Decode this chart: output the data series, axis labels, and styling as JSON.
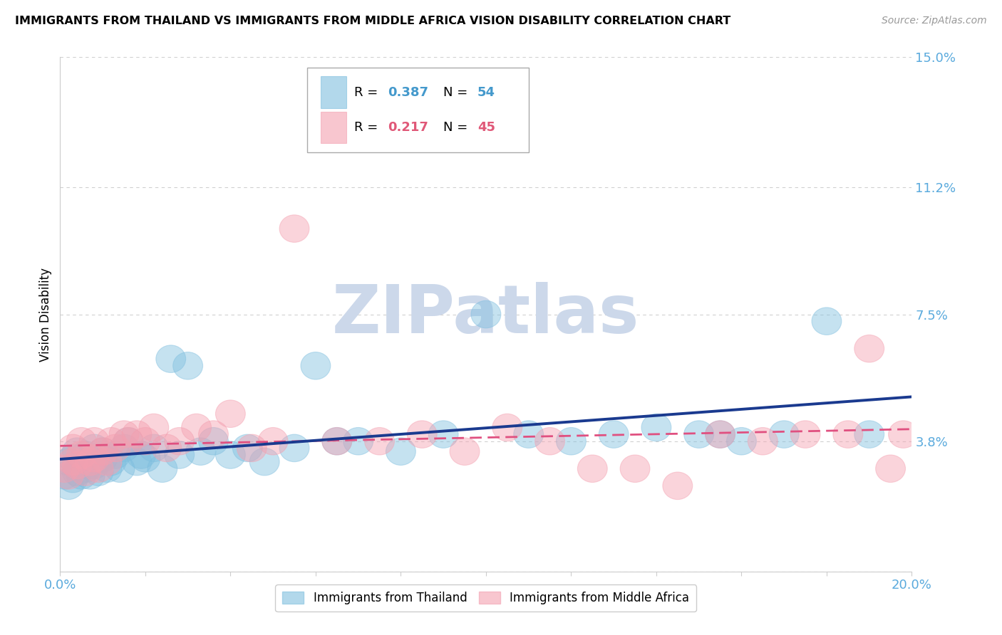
{
  "title": "IMMIGRANTS FROM THAILAND VS IMMIGRANTS FROM MIDDLE AFRICA VISION DISABILITY CORRELATION CHART",
  "source": "Source: ZipAtlas.com",
  "ylabel": "Vision Disability",
  "xlim": [
    0.0,
    0.2
  ],
  "ylim": [
    0.0,
    0.15
  ],
  "ytick_vals": [
    0.0,
    0.038,
    0.075,
    0.112,
    0.15
  ],
  "ytick_labels": [
    "",
    "3.8%",
    "7.5%",
    "11.2%",
    "15.0%"
  ],
  "xtick_vals": [
    0.0,
    0.02,
    0.04,
    0.06,
    0.08,
    0.1,
    0.12,
    0.14,
    0.16,
    0.18,
    0.2
  ],
  "xtick_labels": [
    "0.0%",
    "",
    "",
    "",
    "",
    "",
    "",
    "",
    "",
    "",
    "20.0%"
  ],
  "bg_color": "#ffffff",
  "grid_color": "#d0d0d0",
  "color_thailand": "#7fbfdf",
  "color_africa": "#f4a0b0",
  "color_blue_line": "#1a3a8f",
  "color_pink_line": "#e05080",
  "color_axis_labels": "#5aaadd",
  "legend_R1": "0.387",
  "legend_N1": "54",
  "legend_R2": "0.217",
  "legend_N2": "45",
  "watermark_text": "ZIPatlas",
  "watermark_color": "#ccd8ea",
  "thailand_x": [
    0.001,
    0.002,
    0.002,
    0.003,
    0.003,
    0.004,
    0.004,
    0.005,
    0.005,
    0.006,
    0.006,
    0.007,
    0.007,
    0.008,
    0.008,
    0.009,
    0.01,
    0.01,
    0.011,
    0.012,
    0.013,
    0.014,
    0.015,
    0.016,
    0.018,
    0.019,
    0.02,
    0.022,
    0.024,
    0.026,
    0.028,
    0.03,
    0.033,
    0.036,
    0.04,
    0.044,
    0.048,
    0.055,
    0.06,
    0.065,
    0.07,
    0.08,
    0.09,
    0.1,
    0.11,
    0.12,
    0.13,
    0.14,
    0.15,
    0.155,
    0.16,
    0.17,
    0.18,
    0.19
  ],
  "thailand_y": [
    0.028,
    0.025,
    0.032,
    0.027,
    0.033,
    0.029,
    0.035,
    0.028,
    0.031,
    0.03,
    0.034,
    0.028,
    0.032,
    0.031,
    0.036,
    0.029,
    0.033,
    0.035,
    0.03,
    0.032,
    0.034,
    0.03,
    0.036,
    0.038,
    0.032,
    0.034,
    0.033,
    0.036,
    0.03,
    0.062,
    0.034,
    0.06,
    0.035,
    0.038,
    0.034,
    0.036,
    0.032,
    0.036,
    0.06,
    0.038,
    0.038,
    0.035,
    0.04,
    0.075,
    0.04,
    0.038,
    0.04,
    0.042,
    0.04,
    0.04,
    0.038,
    0.04,
    0.073,
    0.04
  ],
  "africa_x": [
    0.001,
    0.002,
    0.003,
    0.003,
    0.004,
    0.005,
    0.005,
    0.006,
    0.007,
    0.008,
    0.008,
    0.009,
    0.01,
    0.011,
    0.012,
    0.013,
    0.015,
    0.016,
    0.018,
    0.02,
    0.022,
    0.025,
    0.028,
    0.032,
    0.036,
    0.04,
    0.045,
    0.05,
    0.055,
    0.065,
    0.075,
    0.085,
    0.095,
    0.105,
    0.115,
    0.125,
    0.135,
    0.145,
    0.155,
    0.165,
    0.175,
    0.185,
    0.19,
    0.195,
    0.198
  ],
  "africa_y": [
    0.03,
    0.028,
    0.032,
    0.036,
    0.031,
    0.034,
    0.038,
    0.029,
    0.032,
    0.033,
    0.038,
    0.03,
    0.035,
    0.032,
    0.038,
    0.036,
    0.04,
    0.038,
    0.04,
    0.038,
    0.042,
    0.036,
    0.038,
    0.042,
    0.04,
    0.046,
    0.036,
    0.038,
    0.1,
    0.038,
    0.038,
    0.04,
    0.035,
    0.042,
    0.038,
    0.03,
    0.03,
    0.025,
    0.04,
    0.038,
    0.04,
    0.04,
    0.065,
    0.03,
    0.04
  ]
}
